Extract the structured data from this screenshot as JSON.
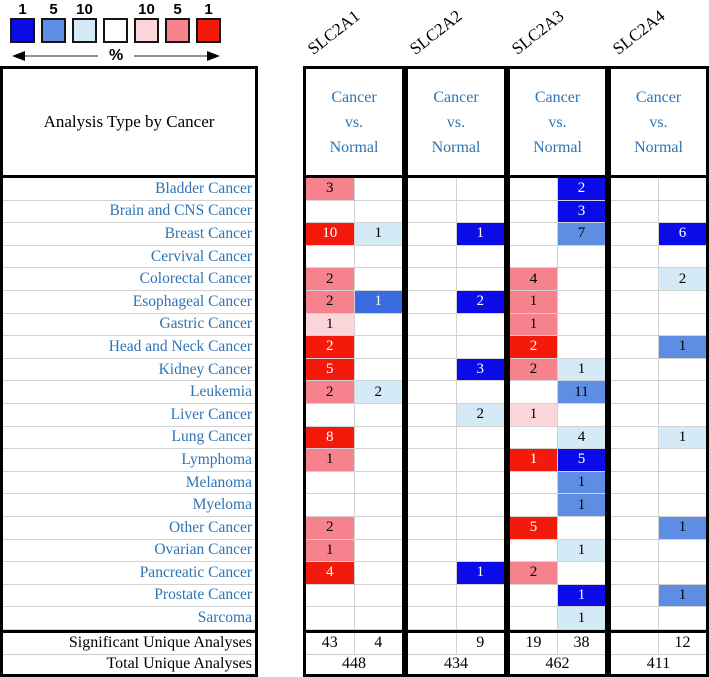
{
  "title": "Analysis Type by Cancer",
  "footer_labels": {
    "significant": "Significant Unique Analyses",
    "total": "Total Unique Analyses"
  },
  "gene_header_lines": [
    "Cancer",
    "vs.",
    "Normal"
  ],
  "legend": {
    "percent_label": "%",
    "items": [
      {
        "label": "1",
        "tone": "blue1"
      },
      {
        "label": "5",
        "tone": "blue5"
      },
      {
        "label": "10",
        "tone": "blue10"
      },
      {
        "label": "",
        "tone": "white"
      },
      {
        "label": "10",
        "tone": "red10"
      },
      {
        "label": "5",
        "tone": "red5"
      },
      {
        "label": "1",
        "tone": "red1"
      }
    ]
  },
  "tones": {
    "blue1": {
      "bg": "#0B0BE8",
      "fg": "#FFFFFF"
    },
    "blue4": {
      "bg": "#3A6BE0",
      "fg": "#FFFFFF"
    },
    "blue5": {
      "bg": "#5E8EE3",
      "fg": "#000000"
    },
    "blue10": {
      "bg": "#D4EAF6",
      "fg": "#000000"
    },
    "white": {
      "bg": "#FFFFFF",
      "fg": "#000000"
    },
    "red10": {
      "bg": "#FAD6DA",
      "fg": "#000000"
    },
    "red5": {
      "bg": "#F5828D",
      "fg": "#000000"
    },
    "red1": {
      "bg": "#F31A0C",
      "fg": "#FFFFFF"
    }
  },
  "colors": {
    "accent_text_blue": "#2E74B5",
    "grid_gray": "#D2D2D2",
    "border_black": "#000000"
  },
  "chart_data": {
    "type": "heatmap",
    "title": "Analysis Type by Cancer",
    "genes": [
      "SLC2A1",
      "SLC2A2",
      "SLC2A3",
      "SLC2A4"
    ],
    "comparison": "Cancer vs. Normal",
    "legend": {
      "blue_percentiles": [
        1,
        5,
        10
      ],
      "red_percentiles": [
        10,
        5,
        1
      ],
      "unit": "%"
    },
    "categories": [
      "Bladder Cancer",
      "Brain and CNS Cancer",
      "Breast Cancer",
      "Cervival Cancer",
      "Colorectal Cancer",
      "Esophageal Cancer",
      "Gastric Cancer",
      "Head and Neck Cancer",
      "Kidney Cancer",
      "Leukemia",
      "Liver Cancer",
      "Lung Cancer",
      "Lymphoma",
      "Melanoma",
      "Myeloma",
      "Other Cancer",
      "Ovarian Cancer",
      "Pancreatic Cancer",
      "Prostate Cancer",
      "Sarcoma"
    ],
    "cells": [
      [
        [
          {
            "v": "3",
            "t": "red5"
          },
          null
        ],
        [
          null,
          null
        ],
        [
          null,
          {
            "v": "2",
            "t": "blue1"
          }
        ],
        [
          null,
          null
        ]
      ],
      [
        [
          null,
          null
        ],
        [
          null,
          null
        ],
        [
          null,
          {
            "v": "3",
            "t": "blue1"
          }
        ],
        [
          null,
          null
        ]
      ],
      [
        [
          {
            "v": "10",
            "t": "red1"
          },
          {
            "v": "1",
            "t": "blue10"
          }
        ],
        [
          null,
          {
            "v": "1",
            "t": "blue1"
          }
        ],
        [
          null,
          {
            "v": "7",
            "t": "blue5"
          }
        ],
        [
          null,
          {
            "v": "6",
            "t": "blue1"
          }
        ]
      ],
      [
        [
          null,
          null
        ],
        [
          null,
          null
        ],
        [
          null,
          null
        ],
        [
          null,
          null
        ]
      ],
      [
        [
          {
            "v": "2",
            "t": "red5"
          },
          null
        ],
        [
          null,
          null
        ],
        [
          {
            "v": "4",
            "t": "red5"
          },
          null
        ],
        [
          null,
          {
            "v": "2",
            "t": "blue10"
          }
        ]
      ],
      [
        [
          {
            "v": "2",
            "t": "red5"
          },
          {
            "v": "1",
            "t": "blue4"
          }
        ],
        [
          null,
          {
            "v": "2",
            "t": "blue1"
          }
        ],
        [
          {
            "v": "1",
            "t": "red5"
          },
          null
        ],
        [
          null,
          null
        ]
      ],
      [
        [
          {
            "v": "1",
            "t": "red10"
          },
          null
        ],
        [
          null,
          null
        ],
        [
          {
            "v": "1",
            "t": "red5"
          },
          null
        ],
        [
          null,
          null
        ]
      ],
      [
        [
          {
            "v": "2",
            "t": "red1"
          },
          null
        ],
        [
          null,
          null
        ],
        [
          {
            "v": "2",
            "t": "red1"
          },
          null
        ],
        [
          null,
          {
            "v": "1",
            "t": "blue5"
          }
        ]
      ],
      [
        [
          {
            "v": "5",
            "t": "red1"
          },
          null
        ],
        [
          null,
          {
            "v": "3",
            "t": "blue1"
          }
        ],
        [
          {
            "v": "2",
            "t": "red5"
          },
          {
            "v": "1",
            "t": "blue10"
          }
        ],
        [
          null,
          null
        ]
      ],
      [
        [
          {
            "v": "2",
            "t": "red5"
          },
          {
            "v": "2",
            "t": "blue10"
          }
        ],
        [
          null,
          null
        ],
        [
          null,
          {
            "v": "11",
            "t": "blue5"
          }
        ],
        [
          null,
          null
        ]
      ],
      [
        [
          null,
          null
        ],
        [
          null,
          {
            "v": "2",
            "t": "blue10"
          }
        ],
        [
          {
            "v": "1",
            "t": "red10"
          },
          null
        ],
        [
          null,
          null
        ]
      ],
      [
        [
          {
            "v": "8",
            "t": "red1"
          },
          null
        ],
        [
          null,
          null
        ],
        [
          null,
          {
            "v": "4",
            "t": "blue10"
          }
        ],
        [
          null,
          {
            "v": "1",
            "t": "blue10"
          }
        ]
      ],
      [
        [
          {
            "v": "1",
            "t": "red5"
          },
          null
        ],
        [
          null,
          null
        ],
        [
          {
            "v": "1",
            "t": "red1"
          },
          {
            "v": "5",
            "t": "blue1"
          }
        ],
        [
          null,
          null
        ]
      ],
      [
        [
          null,
          null
        ],
        [
          null,
          null
        ],
        [
          null,
          {
            "v": "1",
            "t": "blue5"
          }
        ],
        [
          null,
          null
        ]
      ],
      [
        [
          null,
          null
        ],
        [
          null,
          null
        ],
        [
          null,
          {
            "v": "1",
            "t": "blue5"
          }
        ],
        [
          null,
          null
        ]
      ],
      [
        [
          {
            "v": "2",
            "t": "red5"
          },
          null
        ],
        [
          null,
          null
        ],
        [
          {
            "v": "5",
            "t": "red1"
          },
          null
        ],
        [
          null,
          {
            "v": "1",
            "t": "blue5"
          }
        ]
      ],
      [
        [
          {
            "v": "1",
            "t": "red5"
          },
          null
        ],
        [
          null,
          null
        ],
        [
          null,
          {
            "v": "1",
            "t": "blue10"
          }
        ],
        [
          null,
          null
        ]
      ],
      [
        [
          {
            "v": "4",
            "t": "red1"
          },
          null
        ],
        [
          null,
          {
            "v": "1",
            "t": "blue1"
          }
        ],
        [
          {
            "v": "2",
            "t": "red5"
          },
          null
        ],
        [
          null,
          null
        ]
      ],
      [
        [
          null,
          null
        ],
        [
          null,
          null
        ],
        [
          null,
          {
            "v": "1",
            "t": "blue1"
          }
        ],
        [
          null,
          {
            "v": "1",
            "t": "blue5"
          }
        ]
      ],
      [
        [
          null,
          null
        ],
        [
          null,
          null
        ],
        [
          null,
          {
            "v": "1",
            "t": "blue10"
          }
        ],
        [
          null,
          null
        ]
      ]
    ],
    "significant_unique_analyses": [
      [
        "43",
        "4"
      ],
      [
        "",
        "9"
      ],
      [
        "19",
        "38"
      ],
      [
        "",
        "12"
      ]
    ],
    "total_unique_analyses": [
      "448",
      "434",
      "462",
      "411"
    ]
  }
}
